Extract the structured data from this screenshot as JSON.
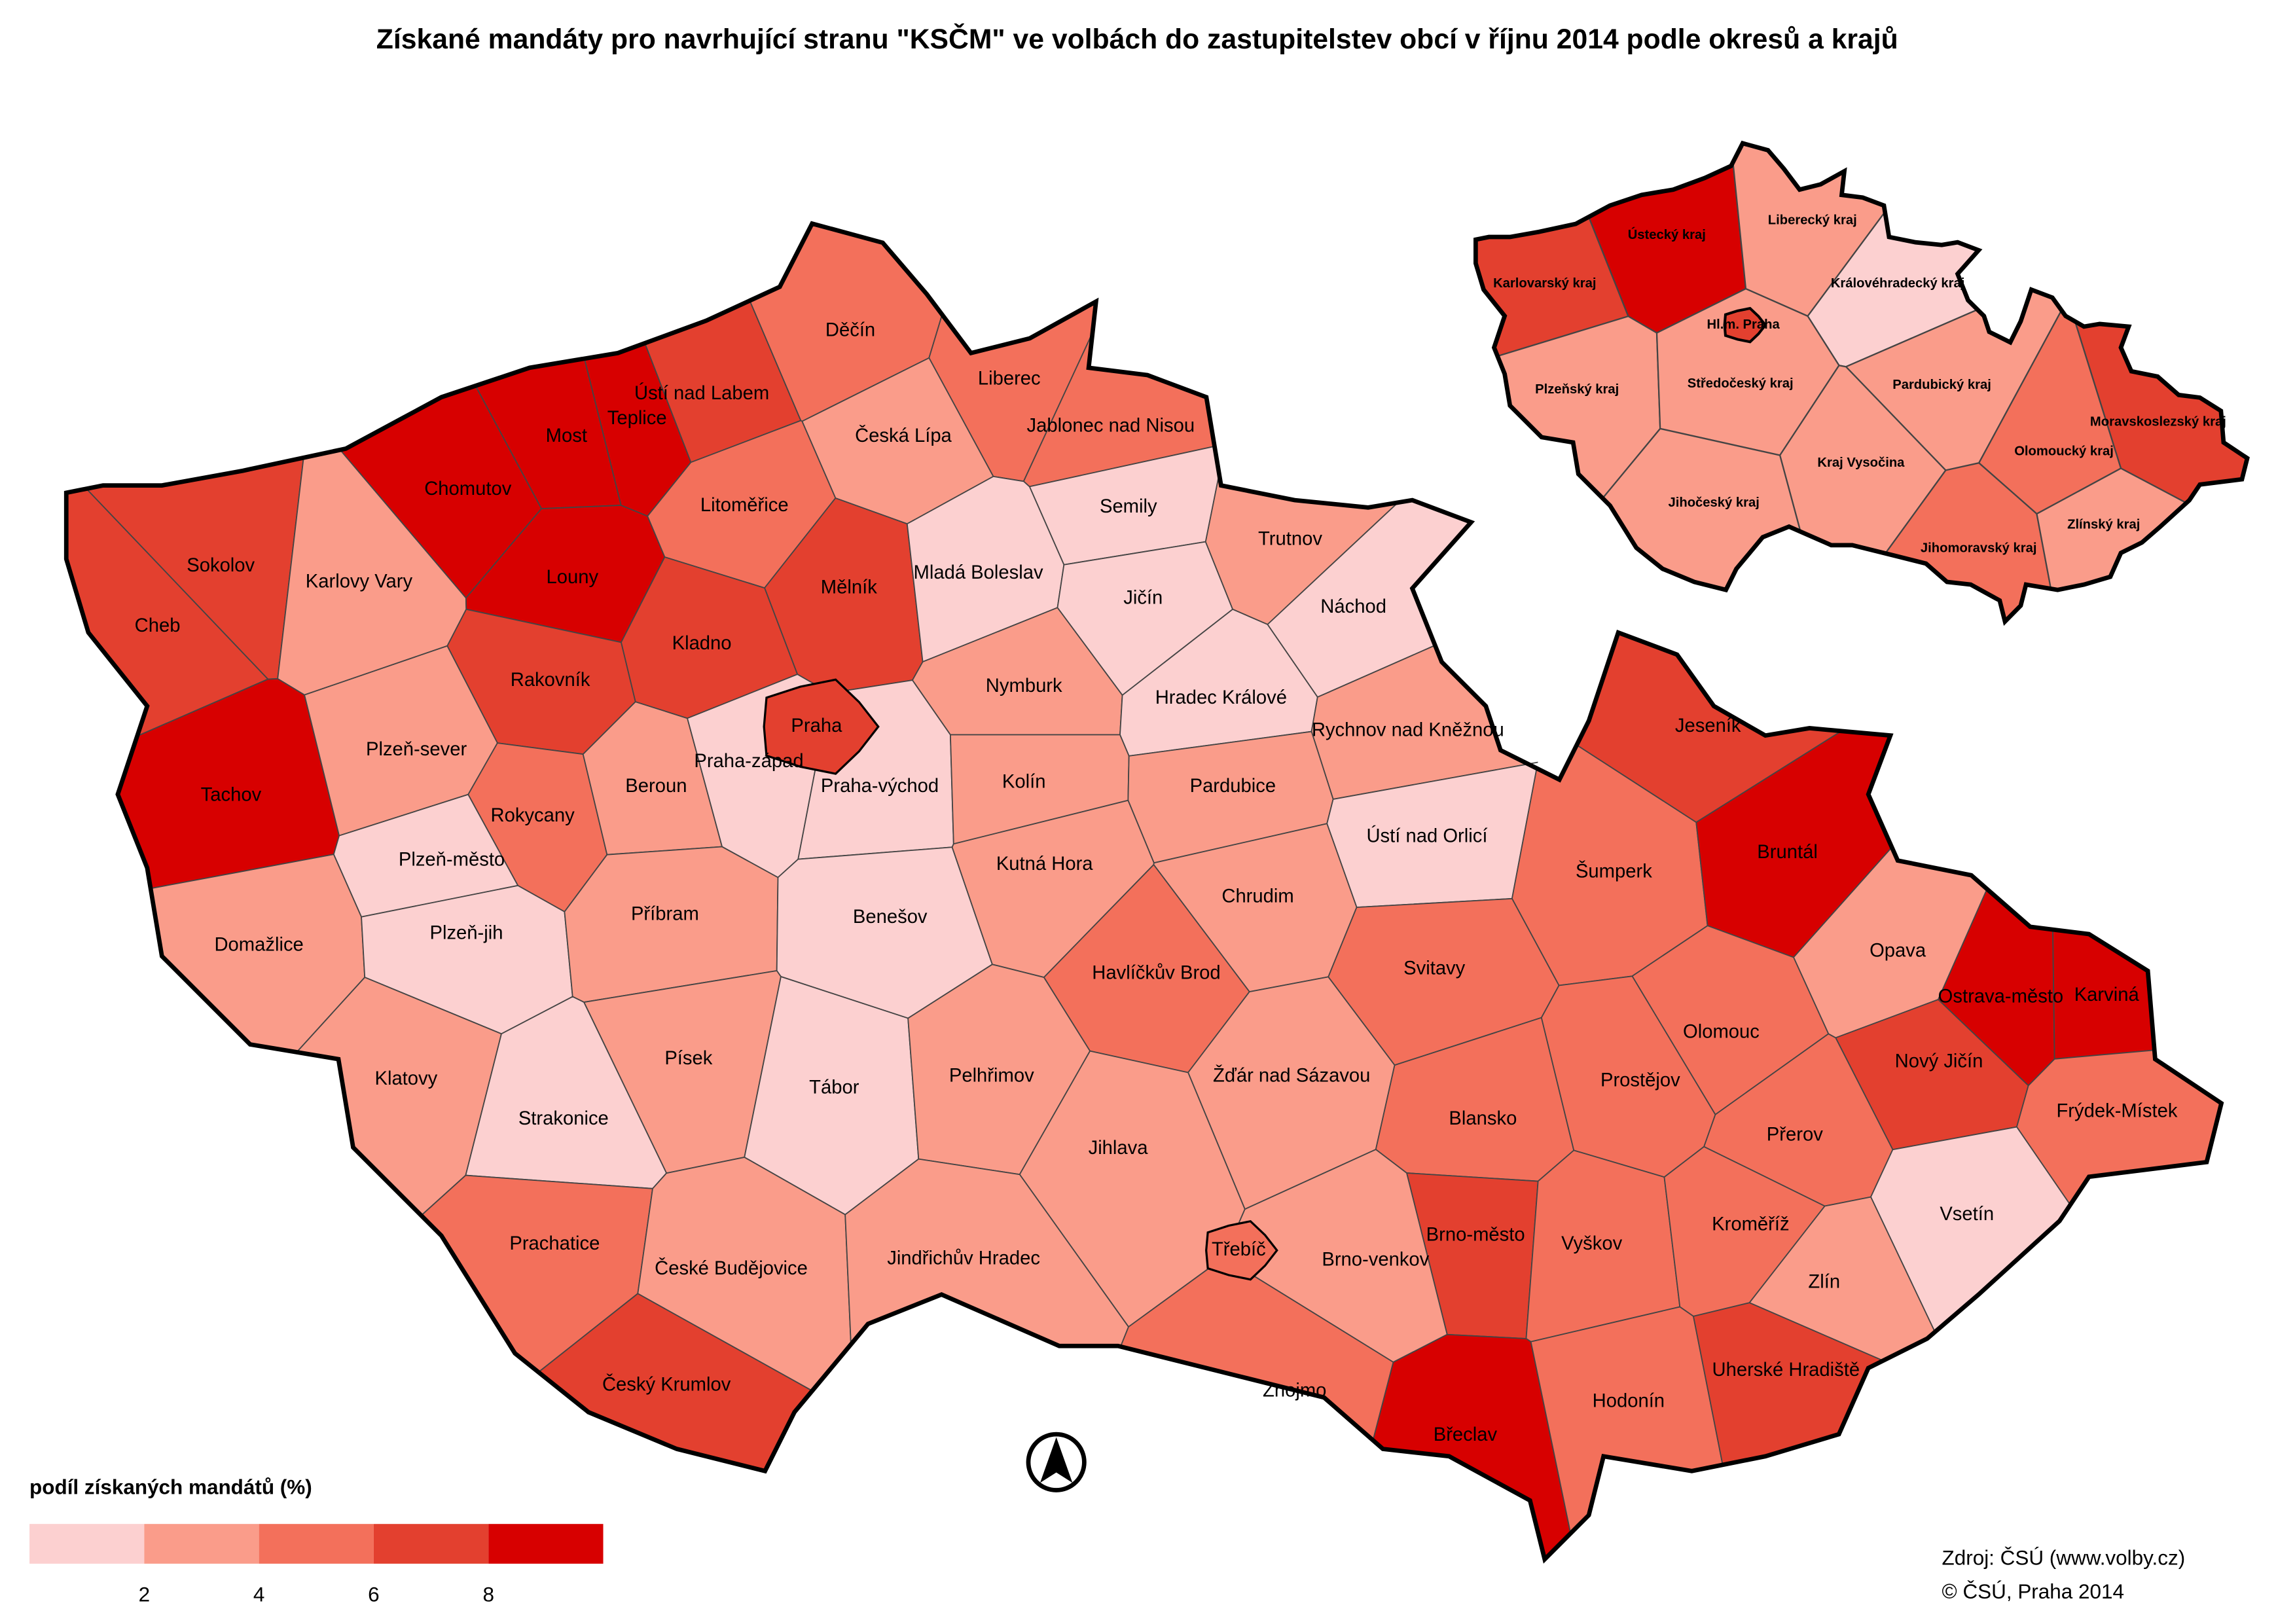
{
  "title": "Získané mandáty pro navrhující stranu \"KSČM\" ve volbách do zastupitelstev obcí v říjnu 2014 podle okresů a krajů",
  "legend": {
    "title": "podíl získaných mandátů (%)",
    "ticks": [
      2,
      4,
      6,
      8
    ],
    "colors": [
      "#fcd0d0",
      "#fa9c8a",
      "#f3705b",
      "#e3402f",
      "#d70000"
    ]
  },
  "districts": [
    {
      "name": "Děčín",
      "value": 5
    },
    {
      "name": "Ústí nad Labem",
      "value": 7
    },
    {
      "name": "Teplice",
      "value": 9
    },
    {
      "name": "Most",
      "value": 9
    },
    {
      "name": "Chomutov",
      "value": 9
    },
    {
      "name": "Liberec",
      "value": 5
    },
    {
      "name": "Jablonec nad Nisou",
      "value": 5
    },
    {
      "name": "Česká Lípa",
      "value": 3
    },
    {
      "name": "Semily",
      "value": 1
    },
    {
      "name": "Litoměřice",
      "value": 5
    },
    {
      "name": "Sokolov",
      "value": 7
    },
    {
      "name": "Karlovy Vary",
      "value": 3
    },
    {
      "name": "Cheb",
      "value": 7
    },
    {
      "name": "Louny",
      "value": 9
    },
    {
      "name": "Mělník",
      "value": 7
    },
    {
      "name": "Mladá Boleslav",
      "value": 1
    },
    {
      "name": "Jičín",
      "value": 1
    },
    {
      "name": "Trutnov",
      "value": 3
    },
    {
      "name": "Náchod",
      "value": 1
    },
    {
      "name": "Kladno",
      "value": 7
    },
    {
      "name": "Rakovník",
      "value": 7
    },
    {
      "name": "Praha",
      "value": 7
    },
    {
      "name": "Nymburk",
      "value": 3
    },
    {
      "name": "Hradec Králové",
      "value": 1
    },
    {
      "name": "Rychnov nad Kněžnou",
      "value": 3
    },
    {
      "name": "Tachov",
      "value": 9
    },
    {
      "name": "Plzeň-sever",
      "value": 3
    },
    {
      "name": "Rokycany",
      "value": 5
    },
    {
      "name": "Beroun",
      "value": 3
    },
    {
      "name": "Praha-západ",
      "value": 1
    },
    {
      "name": "Praha-východ",
      "value": 1
    },
    {
      "name": "Kolín",
      "value": 3
    },
    {
      "name": "Pardubice",
      "value": 3
    },
    {
      "name": "Plzeň-město",
      "value": 1
    },
    {
      "name": "Ústí nad Orlicí",
      "value": 1
    },
    {
      "name": "Jeseník",
      "value": 7
    },
    {
      "name": "Šumperk",
      "value": 5
    },
    {
      "name": "Bruntál",
      "value": 9
    },
    {
      "name": "Domažlice",
      "value": 3
    },
    {
      "name": "Plzeň-jih",
      "value": 1
    },
    {
      "name": "Příbram",
      "value": 3
    },
    {
      "name": "Benešov",
      "value": 1
    },
    {
      "name": "Kutná Hora",
      "value": 3
    },
    {
      "name": "Chrudim",
      "value": 3
    },
    {
      "name": "Svitavy",
      "value": 5
    },
    {
      "name": "Havlíčkův Brod",
      "value": 5
    },
    {
      "name": "Opava",
      "value": 3
    },
    {
      "name": "Ostrava-město",
      "value": 9
    },
    {
      "name": "Karviná",
      "value": 9
    },
    {
      "name": "Nový Jičín",
      "value": 7
    },
    {
      "name": "Frýdek-Místek",
      "value": 5
    },
    {
      "name": "Olomouc",
      "value": 5
    },
    {
      "name": "Klatovy",
      "value": 3
    },
    {
      "name": "Písek",
      "value": 3
    },
    {
      "name": "Tábor",
      "value": 1
    },
    {
      "name": "Strakonice",
      "value": 1
    },
    {
      "name": "Pelhřimov",
      "value": 3
    },
    {
      "name": "Žďár nad Sázavou",
      "value": 3
    },
    {
      "name": "Jihlava",
      "value": 3
    },
    {
      "name": "Blansko",
      "value": 5
    },
    {
      "name": "Prostějov",
      "value": 5
    },
    {
      "name": "Přerov",
      "value": 5
    },
    {
      "name": "Vsetín",
      "value": 1
    },
    {
      "name": "Prachatice",
      "value": 5
    },
    {
      "name": "České Budějovice",
      "value": 3
    },
    {
      "name": "Jindřichův Hradec",
      "value": 3
    },
    {
      "name": "Třebíč",
      "value": 5
    },
    {
      "name": "Brno-město",
      "value": 7
    },
    {
      "name": "Brno-venkov",
      "value": 3
    },
    {
      "name": "Vyškov",
      "value": 5
    },
    {
      "name": "Kroměříž",
      "value": 5
    },
    {
      "name": "Zlín",
      "value": 3
    },
    {
      "name": "Český Krumlov",
      "value": 7
    },
    {
      "name": "Znojmo",
      "value": 5
    },
    {
      "name": "Břeclav",
      "value": 9
    },
    {
      "name": "Hodonín",
      "value": 5
    },
    {
      "name": "Uherské Hradiště",
      "value": 7
    }
  ],
  "regions": [
    {
      "name": "Ústecký kraj",
      "value": 9
    },
    {
      "name": "Liberecký kraj",
      "value": 3
    },
    {
      "name": "Karlovarský kraj",
      "value": 7
    },
    {
      "name": "Královéhradecký kraj",
      "value": 1
    },
    {
      "name": "Hl.m. Praha",
      "value": 7
    },
    {
      "name": "Plzeňský kraj",
      "value": 3
    },
    {
      "name": "Středočeský kraj",
      "value": 3
    },
    {
      "name": "Pardubický kraj",
      "value": 3
    },
    {
      "name": "Moravskoslezský kraj",
      "value": 7
    },
    {
      "name": "Olomoucký kraj",
      "value": 5
    },
    {
      "name": "Kraj Vysočina",
      "value": 3
    },
    {
      "name": "Jihočeský kraj",
      "value": 3
    },
    {
      "name": "Jihomoravský kraj",
      "value": 5
    },
    {
      "name": "Zlínský kraj",
      "value": 3
    }
  ],
  "source": [
    "Zdroj: ČSÚ (www.volby.cz)",
    "© ČSÚ, Praha 2014"
  ]
}
